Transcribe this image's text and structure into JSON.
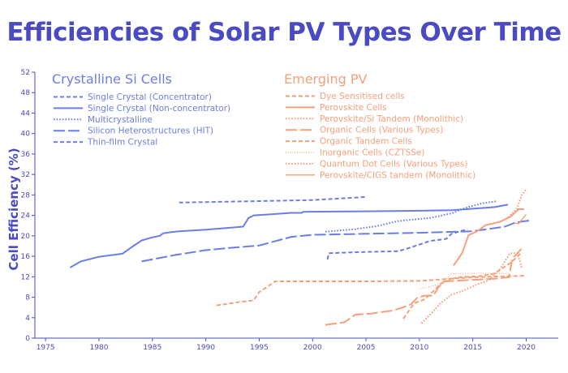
{
  "chart_data": {
    "type": "line",
    "title": "Efficiencies of Solar PV Types Over Time",
    "ylabel": "Cell Efficiency (%)",
    "xlim": [
      1974,
      2023
    ],
    "ylim": [
      0,
      52
    ],
    "xticks": [
      1975,
      1980,
      1985,
      1990,
      1995,
      2000,
      2005,
      2010,
      2015,
      2020
    ],
    "yticks": [
      0,
      4,
      8,
      12,
      16,
      20,
      24,
      28,
      32,
      36,
      40,
      44,
      48,
      52
    ],
    "legend": "top",
    "groups": [
      {
        "name": "Crystalline Si Cells",
        "color": "#6b7ee8",
        "series": [
          {
            "name": "Single Crystal (Concentrator)",
            "dash": "5,3",
            "width": 2,
            "points": [
              [
                1987.5,
                26.5
              ],
              [
                1990,
                26.6
              ],
              [
                1995,
                26.8
              ],
              [
                2000,
                27
              ],
              [
                2005,
                27.6
              ]
            ]
          },
          {
            "name": "Single Crystal (Non-concentrator)",
            "dash": "",
            "width": 2,
            "points": [
              [
                1977.3,
                13.8
              ],
              [
                1978.3,
                15.0
              ],
              [
                1980,
                15.9
              ],
              [
                1982.2,
                16.5
              ],
              [
                1983.2,
                18
              ],
              [
                1984,
                19.1
              ],
              [
                1985,
                19.7
              ],
              [
                1985.7,
                20.0
              ],
              [
                1986,
                20.5
              ],
              [
                1986.7,
                20.7
              ],
              [
                1987.5,
                20.9
              ],
              [
                1990,
                21.2
              ],
              [
                1993.5,
                21.8
              ],
              [
                1994,
                23.5
              ],
              [
                1994.5,
                24.0
              ],
              [
                1996,
                24.2
              ],
              [
                1998,
                24.5
              ],
              [
                1999,
                24.5
              ],
              [
                1999.1,
                24.7
              ],
              [
                2005,
                24.8
              ],
              [
                2010,
                24.9
              ],
              [
                2013,
                25.0
              ],
              [
                2017,
                25.6
              ],
              [
                2018.3,
                26.1
              ]
            ]
          },
          {
            "name": "Multicrystalline",
            "dash": "1.6,2",
            "width": 2,
            "points": [
              [
                2001.2,
                20.8
              ],
              [
                2004,
                21.3
              ],
              [
                2006,
                21.9
              ],
              [
                2008,
                22.9
              ],
              [
                2010,
                23.3
              ],
              [
                2011,
                23.5
              ],
              [
                2013,
                24.4
              ],
              [
                2014.5,
                25.6
              ],
              [
                2016,
                26.4
              ],
              [
                2017.3,
                26.8
              ]
            ]
          },
          {
            "name": "Silicon Heterostructures (HIT)",
            "dash": "14,4",
            "width": 2,
            "points": [
              [
                1984,
                15.0
              ],
              [
                1987,
                16.2
              ],
              [
                1990,
                17.2
              ],
              [
                1992,
                17.6
              ],
              [
                1995,
                18.1
              ],
              [
                1998,
                19.8
              ],
              [
                2000,
                20.2
              ],
              [
                2005,
                20.4
              ],
              [
                2010,
                20.6
              ],
              [
                2015,
                20.9
              ],
              [
                2018,
                21.8
              ],
              [
                2019,
                22.6
              ],
              [
                2020.3,
                23.0
              ]
            ]
          },
          {
            "name": "Thin-film Crystal",
            "dash": "5,3",
            "width": 2,
            "points": [
              [
                2001.4,
                15.4
              ],
              [
                2001.5,
                16.6
              ],
              [
                2004,
                16.8
              ],
              [
                2008,
                17.0
              ],
              [
                2009,
                17.6
              ],
              [
                2011,
                19.0
              ],
              [
                2012.5,
                19.4
              ],
              [
                2013,
                20.4
              ],
              [
                2014.5,
                21.3
              ]
            ]
          }
        ]
      },
      {
        "name": "Emerging PV",
        "color": "#f5a07a",
        "series": [
          {
            "name": "Dye Sensitised cells",
            "dash": "5,3",
            "width": 2,
            "points": [
              [
                1991,
                6.4
              ],
              [
                1993,
                7.0
              ],
              [
                1994.5,
                7.4
              ],
              [
                1995,
                9.0
              ],
              [
                1996.5,
                11.1
              ],
              [
                2000,
                11.1
              ],
              [
                2005,
                11.1
              ],
              [
                2010,
                11.2
              ],
              [
                2015,
                11.9
              ],
              [
                2020,
                12.2
              ]
            ]
          },
          {
            "name": "Perovskite Cells",
            "dash": "",
            "width": 2,
            "points": [
              [
                2013.2,
                14.2
              ],
              [
                2014,
                16.6
              ],
              [
                2014.6,
                20.1
              ],
              [
                2015.5,
                21.0
              ],
              [
                2016.2,
                22.1
              ],
              [
                2017.5,
                22.7
              ],
              [
                2018.5,
                23.7
              ],
              [
                2019.3,
                25.2
              ],
              [
                2019.8,
                25.2
              ]
            ]
          },
          {
            "name": "Perovskite/Si Tandem (Monolithic)",
            "dash": "1.6,2",
            "width": 2,
            "points": [
              [
                2018.3,
                23.6
              ],
              [
                2019.1,
                25.2
              ],
              [
                2019.6,
                28.0
              ],
              [
                2020,
                29.1
              ]
            ]
          },
          {
            "name": "Organic Cells (Various Types)",
            "dash": "14,4",
            "width": 2,
            "points": [
              [
                2001.2,
                2.6
              ],
              [
                2003,
                3.1
              ],
              [
                2004,
                4.6
              ],
              [
                2005.5,
                4.8
              ],
              [
                2007.5,
                5.4
              ],
              [
                2008.3,
                5.9
              ],
              [
                2009.2,
                6.6
              ],
              [
                2009.8,
                7.9
              ],
              [
                2010.5,
                8.3
              ],
              [
                2011.3,
                8.3
              ],
              [
                2011.8,
                10.0
              ],
              [
                2012.3,
                11.1
              ],
              [
                2015,
                11.4
              ],
              [
                2017,
                11.6
              ],
              [
                2018.4,
                11.9
              ],
              [
                2018.7,
                15.6
              ],
              [
                2019.1,
                16.4
              ],
              [
                2019.6,
                17.6
              ]
            ]
          },
          {
            "name": "Organic Tandem Cells",
            "dash": "5,3",
            "width": 2,
            "points": [
              [
                2008.5,
                3.8
              ],
              [
                2009.5,
                6.8
              ],
              [
                2010.5,
                7.6
              ],
              [
                2012,
                10.6
              ],
              [
                2013.5,
                11.9
              ],
              [
                2015.5,
                12.1
              ],
              [
                2017,
                12.6
              ],
              [
                2018.6,
                14.8
              ],
              [
                2019.5,
                16.6
              ]
            ]
          },
          {
            "name": "Inorganic Cells (CZTSSe)",
            "dash": "0.8,2",
            "width": 1.4,
            "points": [
              [
                2010,
                9.7
              ],
              [
                2011.2,
                10.1
              ],
              [
                2012.3,
                11.1
              ],
              [
                2013,
                12.6
              ],
              [
                2014.5,
                12.6
              ],
              [
                2016,
                12.7
              ],
              [
                2018.5,
                12.6
              ]
            ]
          },
          {
            "name": "Quantum Dot Cells (Various Types)",
            "dash": "1.6,2",
            "width": 2,
            "points": [
              [
                2010.2,
                2.9
              ],
              [
                2011,
                4.6
              ],
              [
                2012,
                6.9
              ],
              [
                2013,
                8.5
              ],
              [
                2014,
                9.2
              ],
              [
                2015.5,
                10.6
              ],
              [
                2016.5,
                11.3
              ],
              [
                2017.5,
                13.4
              ],
              [
                2018.5,
                16.6
              ],
              [
                2019.2,
                16.6
              ],
              [
                2019.6,
                13.6
              ]
            ]
          },
          {
            "name": "Perovskite/CIGS tandem (Monolithic)",
            "dash": "",
            "width": 1.4,
            "points": [
              [
                2018.9,
                22.5
              ],
              [
                2019.3,
                22.4
              ],
              [
                2019.6,
                23.2
              ],
              [
                2020,
                24.2
              ]
            ]
          }
        ]
      }
    ]
  }
}
